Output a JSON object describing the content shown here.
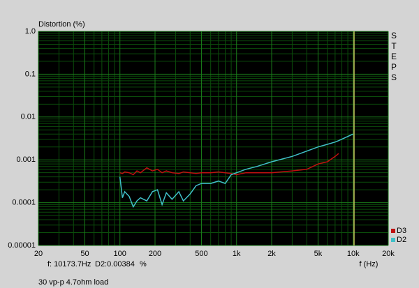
{
  "chart_data": {
    "type": "line",
    "title": "Distortion (%)",
    "x_label": "f (Hz)",
    "side_label": "STEPS",
    "footer": "30 vp-p 4.7ohm load",
    "cursor": {
      "value": 10173.7,
      "label": "f: 10173.7Hz"
    },
    "readout": "D2:0.00384",
    "readout_unit": "%",
    "x_log": true,
    "y_log": true,
    "grid": true,
    "legend": "bottom-right",
    "xlim": [
      20,
      20000
    ],
    "xticks": [
      20,
      50,
      100,
      200,
      500,
      {
        "value": 1000,
        "label": "1k"
      },
      {
        "value": 2000,
        "label": "2k"
      },
      {
        "value": 5000,
        "label": "5k"
      },
      {
        "value": 10000,
        "label": "10k"
      },
      {
        "value": 20000,
        "label": "20k"
      }
    ],
    "ylim": [
      1e-05,
      1
    ],
    "yticks": [
      {
        "value": 1,
        "label": "1.0"
      },
      0.1,
      0.01,
      0.001,
      0.0001,
      1e-05
    ],
    "x": [
      100,
      105,
      110,
      120,
      130,
      140,
      150,
      170,
      190,
      210,
      230,
      250,
      280,
      320,
      350,
      400,
      450,
      500,
      600,
      700,
      800,
      900,
      1000,
      1200,
      1500,
      2000,
      3000,
      4000,
      5000,
      6000,
      7000,
      7500,
      10000
    ],
    "series": [
      {
        "name": "D3",
        "color": "#c01010",
        "values": [
          0.0005,
          0.00048,
          0.00052,
          0.0005,
          0.00045,
          0.00055,
          0.0005,
          0.00065,
          0.00055,
          0.0006,
          0.0005,
          0.00055,
          0.0005,
          0.00048,
          0.00052,
          0.0005,
          0.00048,
          0.0005,
          0.0005,
          0.00052,
          0.0005,
          0.00048,
          0.00045,
          0.0005,
          0.0005,
          0.0005,
          0.00055,
          0.0006,
          0.0008,
          0.0009,
          0.0012,
          0.0014,
          null
        ]
      },
      {
        "name": "D2",
        "color": "#40c0c8",
        "values": [
          0.0004,
          0.00013,
          0.00018,
          0.00014,
          8e-05,
          0.00011,
          0.00013,
          0.00011,
          0.00018,
          0.0002,
          9e-05,
          0.00017,
          0.00012,
          0.00018,
          0.00011,
          0.00016,
          0.00025,
          0.00028,
          0.00028,
          0.00032,
          0.00028,
          0.00045,
          0.0005,
          0.0006,
          0.0007,
          0.0009,
          0.0012,
          0.0016,
          0.002,
          0.0023,
          0.0026,
          0.0028,
          0.004
        ]
      }
    ]
  }
}
